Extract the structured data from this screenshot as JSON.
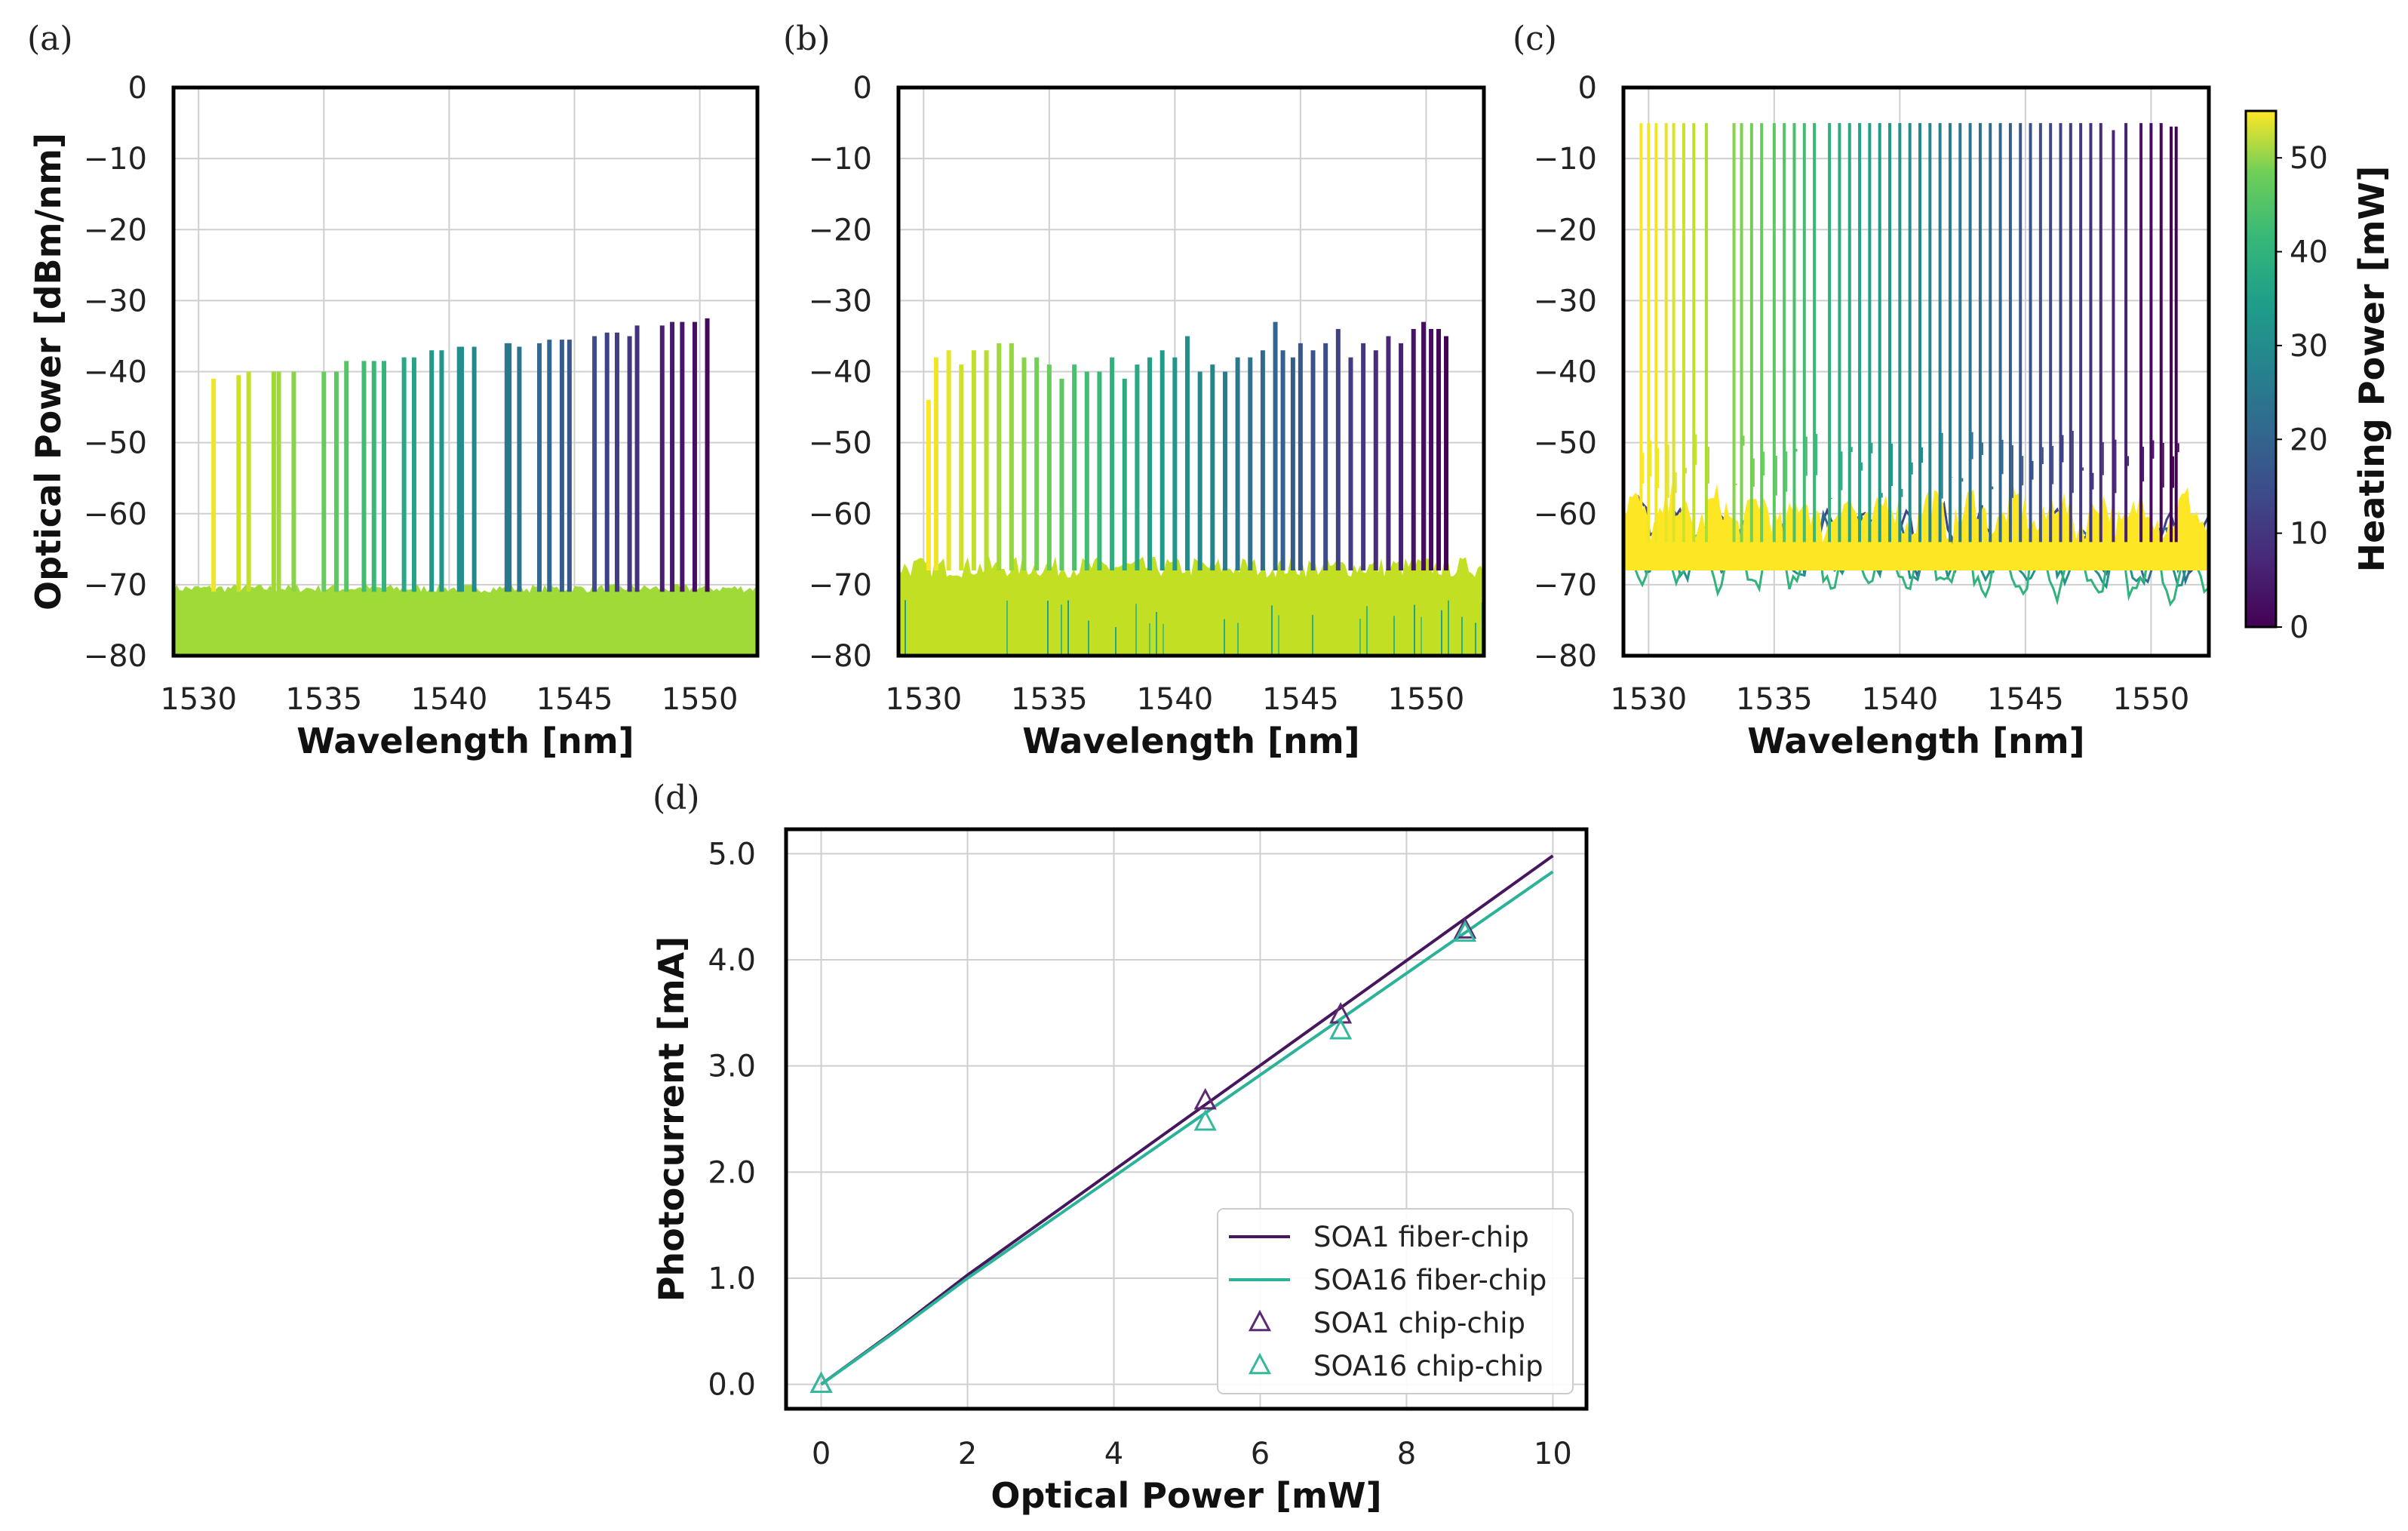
{
  "chart_data": [
    {
      "panel": "(a)",
      "type": "line",
      "xlabel": "Wavelength [nm]",
      "ylabel": "Optical Power [dBm/nm]",
      "xlim": [
        1529,
        1552.3
      ],
      "ylim": [
        -80,
        0
      ],
      "xticks": [
        "1530",
        "1535",
        "1540",
        "1545",
        "1550"
      ],
      "yticks": [
        "0",
        "−10",
        "−20",
        "−30",
        "−40",
        "−50",
        "−60",
        "−70",
        "−80"
      ],
      "grid": true,
      "noise_floor_dBm": [
        -70.5,
        -80
      ],
      "noise_color": "#a0da39",
      "peak_base_dBm": -71,
      "peaks": {
        "wavelength_nm": [
          1530.6,
          1531.6,
          1532.0,
          1533.0,
          1533.2,
          1533.8,
          1535.0,
          1535.5,
          1535.9,
          1536.6,
          1537.0,
          1537.4,
          1538.2,
          1538.6,
          1539.3,
          1539.7,
          1540.4,
          1540.5,
          1541.0,
          1542.3,
          1542.4,
          1542.8,
          1543.6,
          1544.0,
          1544.5,
          1544.8,
          1545.8,
          1546.3,
          1546.7,
          1547.2,
          1547.5,
          1548.5,
          1548.9,
          1549.3,
          1549.8,
          1550.3
        ],
        "power_dBm": [
          -41,
          -40.5,
          -40,
          -40,
          -40,
          -40,
          -40,
          -40,
          -38.5,
          -38.5,
          -38.5,
          -38.5,
          -38,
          -38,
          -37,
          -37,
          -36.5,
          -36.5,
          -36.5,
          -36,
          -36,
          -36.5,
          -36,
          -35.5,
          -35.5,
          -35.5,
          -35,
          -34.5,
          -34.5,
          -35,
          -33.5,
          -33.5,
          -33,
          -33,
          -33,
          -32.5
        ],
        "heating_power_mW": [
          54,
          51,
          50,
          47,
          47,
          45,
          42,
          41,
          40,
          38,
          37,
          36,
          33,
          32,
          30,
          29,
          27,
          27,
          26,
          22,
          22,
          21,
          19,
          18,
          16,
          15,
          13,
          11,
          10,
          9,
          8,
          5,
          4,
          3,
          2,
          1
        ]
      }
    },
    {
      "panel": "(b)",
      "type": "line",
      "xlabel": "Wavelength [nm]",
      "ylabel": "",
      "xlim": [
        1529,
        1552.3
      ],
      "ylim": [
        -80,
        0
      ],
      "xticks": [
        "1530",
        "1535",
        "1540",
        "1545",
        "1550"
      ],
      "yticks": [
        "0",
        "−10",
        "−20",
        "−30",
        "−40",
        "−50",
        "−60",
        "−70",
        "−80"
      ],
      "grid": true,
      "noise_floor_dBm": [
        -67.5,
        -80
      ],
      "noise_color": "#c2df23",
      "peak_base_dBm": -68,
      "peaks": {
        "wavelength_nm": [
          1530.2,
          1530.5,
          1531.0,
          1531.5,
          1532.0,
          1532.5,
          1533.0,
          1533.5,
          1534.0,
          1534.5,
          1535.0,
          1535.5,
          1536.0,
          1536.5,
          1537.0,
          1537.5,
          1538.0,
          1538.5,
          1539.0,
          1539.5,
          1540.0,
          1540.5,
          1541.0,
          1541.5,
          1542.0,
          1542.5,
          1543.0,
          1543.5,
          1544.0,
          1544.3,
          1544.7,
          1545.0,
          1545.5,
          1546.0,
          1546.5,
          1547.0,
          1547.5,
          1548.0,
          1548.5,
          1549.0,
          1549.5,
          1549.9,
          1550.2,
          1550.5,
          1550.8
        ],
        "power_dBm": [
          -44,
          -38,
          -37,
          -39,
          -37,
          -37,
          -36,
          -36,
          -38,
          -38,
          -39,
          -41,
          -39,
          -40,
          -40,
          -38,
          -41,
          -39,
          -38,
          -37,
          -38,
          -35,
          -40,
          -39,
          -40,
          -38,
          -38,
          -37,
          -33,
          -37,
          -38,
          -36,
          -37,
          -36,
          -34,
          -38,
          -36,
          -37,
          -35,
          -36,
          -34,
          -33,
          -34,
          -34,
          -35
        ],
        "heating_power_mW": [
          55,
          54,
          53,
          51,
          50,
          49,
          47,
          46,
          45,
          43,
          42,
          41,
          39,
          38,
          37,
          35,
          34,
          33,
          31,
          30,
          29,
          27,
          26,
          25,
          23,
          22,
          21,
          19,
          18,
          17,
          16,
          15,
          14,
          13,
          11,
          10,
          9,
          7,
          6,
          5,
          3,
          2,
          2,
          1,
          0
        ]
      }
    },
    {
      "panel": "(c)",
      "type": "line",
      "xlabel": "Wavelength [nm]",
      "ylabel": "",
      "xlim": [
        1529,
        1552.3
      ],
      "ylim": [
        -80,
        0
      ],
      "xticks": [
        "1530",
        "1535",
        "1540",
        "1545",
        "1550"
      ],
      "yticks": [
        "0",
        "−10",
        "−20",
        "−30",
        "−40",
        "−50",
        "−60",
        "−70",
        "−80"
      ],
      "grid": true,
      "noise_floor_dBm": [
        -60,
        -68
      ],
      "noise_color": "#fde725",
      "peak_base_dBm": -64,
      "peaks": {
        "wavelength_nm": [
          1529.7,
          1530.0,
          1530.3,
          1530.7,
          1531.0,
          1531.4,
          1531.8,
          1532.3,
          1533.4,
          1533.7,
          1534.1,
          1534.5,
          1535.0,
          1535.4,
          1535.8,
          1536.2,
          1536.6,
          1537.2,
          1537.6,
          1538.0,
          1538.4,
          1538.8,
          1539.2,
          1539.6,
          1540.0,
          1540.4,
          1540.8,
          1541.2,
          1541.6,
          1542.0,
          1542.4,
          1542.8,
          1543.2,
          1543.6,
          1544.0,
          1544.4,
          1544.8,
          1545.2,
          1545.6,
          1546.0,
          1546.4,
          1546.8,
          1547.2,
          1547.6,
          1548.0,
          1548.5,
          1549.0,
          1549.6,
          1550.0,
          1550.4,
          1550.8,
          1551.0
        ],
        "power_dBm": [
          -5,
          -5,
          -5,
          -5,
          -5,
          -5,
          -5,
          -5,
          -5,
          -5,
          -5,
          -5,
          -5,
          -5,
          -5,
          -5,
          -5,
          -5,
          -5,
          -5,
          -5,
          -5,
          -5,
          -5,
          -5,
          -5,
          -5,
          -5,
          -5,
          -5,
          -5,
          -5,
          -5,
          -5,
          -5,
          -5,
          -5,
          -5,
          -5,
          -5,
          -5,
          -5,
          -5,
          -5,
          -5,
          -6,
          -5,
          -5,
          -5,
          -5,
          -5.5,
          -5.5
        ],
        "heating_power_mW": [
          55,
          54,
          54,
          53,
          52,
          51,
          50,
          48,
          45,
          44,
          43,
          42,
          41,
          40,
          39,
          38,
          37,
          35,
          34,
          33,
          32,
          31,
          30,
          29,
          28,
          27,
          26,
          25,
          24,
          23,
          22,
          21,
          20,
          19,
          18,
          16,
          15,
          14,
          13,
          12,
          11,
          10,
          9,
          8,
          7,
          6,
          5,
          3,
          2,
          1,
          0,
          0
        ]
      },
      "colorbar": {
        "label": "Heating Power [mW]",
        "range": [
          0,
          55
        ],
        "ticks": [
          "0",
          "10",
          "20",
          "30",
          "40",
          "50"
        ],
        "tick_values": [
          0,
          10,
          20,
          30,
          40,
          50
        ],
        "colormap": "viridis"
      }
    },
    {
      "panel": "(d)",
      "type": "line",
      "xlabel": "Optical Power [mW]",
      "ylabel": "Photocurrent [mA]",
      "xlim": [
        -0.48,
        10.46
      ],
      "ylim": [
        -0.23,
        5.23
      ],
      "xticks": [
        "0",
        "2",
        "4",
        "6",
        "8",
        "10"
      ],
      "xtick_values": [
        0,
        2,
        4,
        6,
        8,
        10
      ],
      "yticks": [
        "0.0",
        "1.0",
        "2.0",
        "3.0",
        "4.0",
        "5.0"
      ],
      "ytick_values": [
        0,
        1,
        2,
        3,
        4,
        5
      ],
      "grid": true,
      "legend_position": "bottom-right",
      "series": [
        {
          "name": "SOA1 fiber-chip",
          "kind": "line",
          "color": "#46175c",
          "x": [
            0,
            1,
            2,
            10
          ],
          "y": [
            0,
            0.5,
            1.03,
            4.98
          ]
        },
        {
          "name": "SOA16 fiber-chip",
          "kind": "line",
          "color": "#2bb39a",
          "x": [
            0,
            1,
            2,
            10
          ],
          "y": [
            0,
            0.49,
            1.0,
            4.83
          ]
        },
        {
          "name": "SOA1 chip-chip",
          "kind": "marker",
          "marker": "triangle",
          "color": "#5b2a72",
          "x": [
            0,
            5.25,
            7.1,
            8.8
          ],
          "y": [
            0,
            2.67,
            3.48,
            4.28
          ]
        },
        {
          "name": "SOA16 chip-chip",
          "kind": "marker",
          "marker": "triangle",
          "color": "#35b89e",
          "x": [
            0,
            5.25,
            7.1,
            8.8
          ],
          "y": [
            0,
            2.47,
            3.33,
            4.25
          ]
        }
      ]
    }
  ]
}
